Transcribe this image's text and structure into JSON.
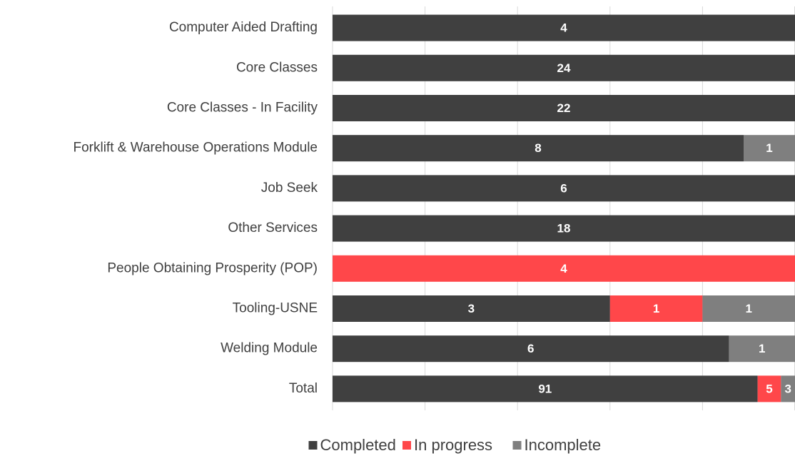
{
  "chart_data": {
    "type": "bar",
    "orientation": "horizontal",
    "stacked": "percent",
    "categories": [
      "Computer Aided Drafting",
      "Core Classes",
      "Core Classes - In Facility",
      "Forklift & Warehouse Operations Module",
      "Job Seek",
      "Other Services",
      "People Obtaining Prosperity (POP)",
      "Tooling-USNE",
      "Welding Module",
      "Total"
    ],
    "series": [
      {
        "name": "Completed",
        "color": "#404040",
        "values": [
          4,
          24,
          22,
          8,
          6,
          18,
          null,
          3,
          6,
          91
        ]
      },
      {
        "name": "In progress",
        "color": "#ff474a",
        "values": [
          null,
          null,
          null,
          null,
          null,
          null,
          4,
          1,
          null,
          5
        ]
      },
      {
        "name": "Incomplete",
        "color": "#7f7f7f",
        "values": [
          null,
          null,
          null,
          1,
          null,
          null,
          null,
          1,
          1,
          3
        ]
      }
    ],
    "xlim": [
      0,
      100
    ],
    "xticks": [
      0,
      20,
      40,
      60,
      80,
      100
    ],
    "grid": true,
    "legend": "bottom"
  }
}
